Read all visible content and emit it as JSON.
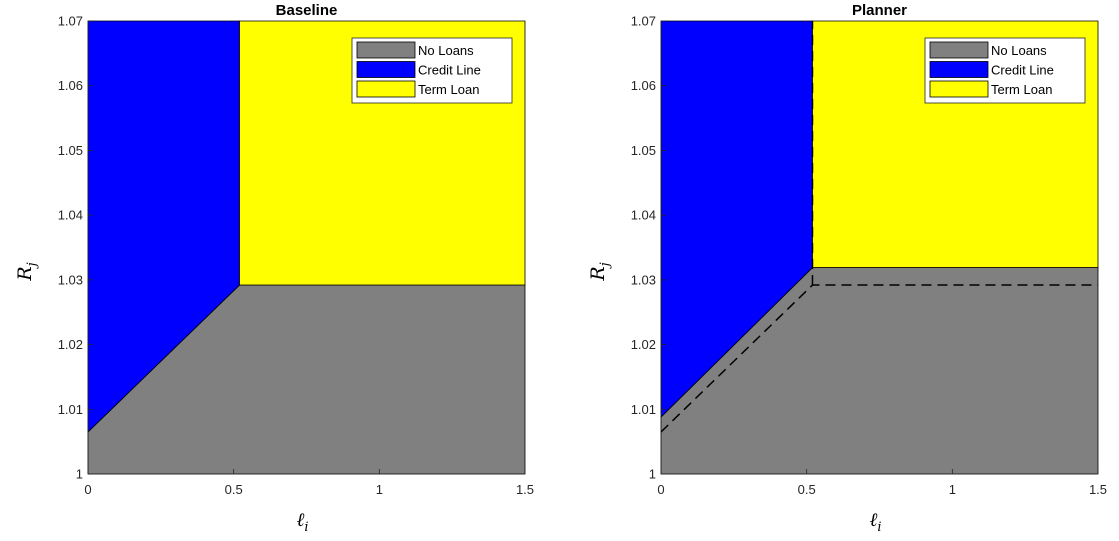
{
  "colors": {
    "no_loans": "#808080",
    "credit_line": "#0000ff",
    "term_loan": "#ffff00",
    "boundary": "#000000"
  },
  "chart_data": [
    {
      "type": "area",
      "title": "Baseline",
      "xlabel": "ℓ",
      "xlabel_sub": "i",
      "ylabel": "R",
      "ylabel_sub": "j",
      "xlim": [
        0,
        1.5
      ],
      "ylim": [
        1,
        1.07
      ],
      "xticks": [
        0,
        0.5,
        1,
        1.5
      ],
      "xtick_labels": [
        "0",
        "0.5",
        "1",
        "1.5"
      ],
      "yticks": [
        1,
        1.01,
        1.02,
        1.03,
        1.04,
        1.05,
        1.06,
        1.07
      ],
      "ytick_labels": [
        "1",
        "1.01",
        "1.02",
        "1.03",
        "1.04",
        "1.05",
        "1.06",
        "1.07"
      ],
      "grid": false,
      "legend_position": "top-right",
      "legend": [
        "No Loans",
        "Credit Line",
        "Term Loan"
      ],
      "regions": {
        "no_loans": [
          [
            0,
            1
          ],
          [
            1.5,
            1
          ],
          [
            1.5,
            1.0292
          ],
          [
            0.52,
            1.0292
          ],
          [
            0,
            1.0065
          ]
        ],
        "credit_line": [
          [
            0,
            1.0065
          ],
          [
            0.52,
            1.0292
          ],
          [
            0.52,
            1.07
          ],
          [
            0,
            1.07
          ]
        ],
        "term_loan": [
          [
            0.52,
            1.0292
          ],
          [
            1.5,
            1.0292
          ],
          [
            1.5,
            1.07
          ],
          [
            0.52,
            1.07
          ]
        ]
      },
      "dashed_lines": []
    },
    {
      "type": "area",
      "title": "Planner",
      "xlabel": "ℓ",
      "xlabel_sub": "i",
      "ylabel": "R",
      "ylabel_sub": "j",
      "xlim": [
        0,
        1.5
      ],
      "ylim": [
        1,
        1.07
      ],
      "xticks": [
        0,
        0.5,
        1,
        1.5
      ],
      "xtick_labels": [
        "0",
        "0.5",
        "1",
        "1.5"
      ],
      "yticks": [
        1,
        1.01,
        1.02,
        1.03,
        1.04,
        1.05,
        1.06,
        1.07
      ],
      "ytick_labels": [
        "1",
        "1.01",
        "1.02",
        "1.03",
        "1.04",
        "1.05",
        "1.06",
        "1.07"
      ],
      "grid": false,
      "legend_position": "top-right",
      "legend": [
        "No Loans",
        "Credit Line",
        "Term Loan"
      ],
      "regions": {
        "no_loans": [
          [
            0,
            1
          ],
          [
            1.5,
            1
          ],
          [
            1.5,
            1.0319
          ],
          [
            0.52,
            1.0319
          ],
          [
            0,
            1.0088
          ]
        ],
        "credit_line": [
          [
            0,
            1.0088
          ],
          [
            0.52,
            1.0319
          ],
          [
            0.52,
            1.07
          ],
          [
            0,
            1.07
          ]
        ],
        "term_loan": [
          [
            0.52,
            1.0319
          ],
          [
            1.5,
            1.0319
          ],
          [
            1.5,
            1.07
          ],
          [
            0.52,
            1.07
          ]
        ]
      },
      "dashed_lines": [
        [
          [
            0,
            1.0065
          ],
          [
            0.52,
            1.0292
          ],
          [
            1.5,
            1.0292
          ]
        ],
        [
          [
            0.52,
            1.0292
          ],
          [
            0.52,
            1.07
          ]
        ]
      ]
    }
  ]
}
